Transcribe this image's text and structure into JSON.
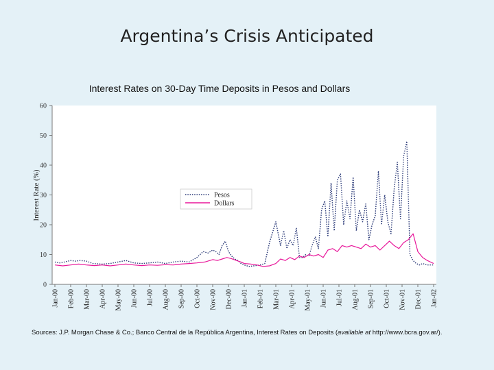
{
  "slide": {
    "title": "Argentina’s Crisis Anticipated",
    "sources_prefix": "Sources: J.P. Morgan Chase & Co.; Banco Central de la República Argentina, Interest Rates on Deposits (",
    "sources_italic": "available at",
    "sources_suffix": " http://www.bcra.gov.ar/)."
  },
  "colors": {
    "background": "#e4f1f7",
    "pesos": "#2b3a78",
    "dollars": "#e8179a"
  },
  "chart_data": {
    "type": "line",
    "title": "Interest Rates on 30-Day Time Deposits in Pesos and Dollars",
    "ylabel": "Interest Rate (%)",
    "xlabel": "",
    "ylim": [
      0,
      60
    ],
    "yticks": [
      0,
      10,
      20,
      30,
      40,
      50,
      60
    ],
    "x_ticks": [
      "Jan-00",
      "Feb-00",
      "Mar-00",
      "Apr-00",
      "May-00",
      "Jun-00",
      "Jul-00",
      "Aug-00",
      "Sep-00",
      "Oct-00",
      "Nov-00",
      "Dec-00",
      "Jan-01",
      "Feb-01",
      "Mar-01",
      "Apr-01",
      "May-01",
      "Jun-01",
      "Jul-01",
      "Aug-01",
      "Sep-01",
      "Oct-01",
      "Nov-01",
      "Dec-01",
      "Jan-02"
    ],
    "legend_position": "center-right",
    "grid": false,
    "series": [
      {
        "name": "Pesos",
        "style": "dotted",
        "x": [
          0,
          0.3,
          0.6,
          1,
          1.3,
          1.6,
          2,
          2.4,
          3,
          3.5,
          4,
          4.5,
          5,
          5.5,
          6,
          6.5,
          7,
          7.5,
          8,
          8.5,
          9,
          9.4,
          9.7,
          10,
          10.2,
          10.4,
          10.6,
          10.8,
          11,
          11.2,
          11.4,
          11.6,
          11.8,
          12,
          12.3,
          12.6,
          13,
          13.3,
          13.6,
          14,
          14.3,
          14.5,
          14.7,
          14.9,
          15.1,
          15.3,
          15.5,
          15.7,
          15.9,
          16.1,
          16.3,
          16.5,
          16.7,
          16.9,
          17.1,
          17.3,
          17.5,
          17.7,
          17.9,
          18.1,
          18.3,
          18.5,
          18.7,
          18.9,
          19.1,
          19.3,
          19.5,
          19.7,
          19.9,
          20.1,
          20.3,
          20.5,
          20.7,
          20.9,
          21.1,
          21.3,
          21.5,
          21.7,
          21.9,
          22.1,
          22.3,
          22.5,
          22.7,
          22.9,
          23.1,
          23.3,
          23.6,
          24
        ],
        "values": [
          7.5,
          7.2,
          7.5,
          8,
          7.8,
          8,
          7.8,
          7,
          6.8,
          7,
          7.5,
          8,
          7.2,
          7,
          7.2,
          7.5,
          7,
          7.5,
          7.8,
          7.5,
          9,
          11,
          10.5,
          11.5,
          11,
          10,
          13,
          14.5,
          11,
          9.5,
          8.5,
          8,
          7,
          6.5,
          6,
          6.2,
          6.5,
          7,
          14,
          21,
          13,
          18,
          12,
          15,
          13,
          19,
          9,
          9,
          10,
          9.5,
          13,
          16,
          12,
          25,
          28,
          16,
          34,
          18,
          35,
          37,
          20,
          28,
          22,
          36,
          18,
          25,
          21,
          27,
          15,
          20,
          23,
          38,
          20,
          30,
          21,
          17,
          32,
          41,
          22,
          43,
          48,
          10,
          8,
          7,
          6.5,
          7,
          6.5,
          6.5
        ]
      },
      {
        "name": "Dollars",
        "style": "solid",
        "x": [
          0,
          0.5,
          1,
          1.5,
          2,
          2.5,
          3,
          3.5,
          4,
          4.5,
          5,
          5.5,
          6,
          6.5,
          7,
          7.5,
          8,
          8.5,
          9,
          9.5,
          10,
          10.3,
          10.6,
          10.9,
          11.2,
          11.5,
          11.8,
          12,
          12.4,
          12.8,
          13.2,
          13.6,
          14,
          14.3,
          14.6,
          14.9,
          15.2,
          15.5,
          15.8,
          16.1,
          16.4,
          16.7,
          17,
          17.3,
          17.6,
          17.9,
          18.2,
          18.5,
          18.8,
          19.1,
          19.4,
          19.7,
          20,
          20.3,
          20.6,
          20.9,
          21.2,
          21.5,
          21.8,
          22.1,
          22.4,
          22.7,
          23,
          23.3,
          23.6,
          24
        ],
        "values": [
          6.5,
          6.2,
          6.5,
          6.8,
          6.5,
          6.3,
          6.5,
          6.2,
          6.5,
          6.8,
          6.5,
          6.3,
          6.5,
          6.4,
          6.6,
          6.5,
          6.8,
          7,
          7.2,
          7.5,
          8.3,
          8,
          8.5,
          9,
          8.6,
          8,
          7.5,
          7,
          6.8,
          6.5,
          6,
          6.2,
          7,
          8.5,
          8,
          9,
          8.3,
          9.5,
          9,
          10,
          9.5,
          10,
          9,
          11.5,
          12,
          11,
          13,
          12.5,
          13,
          12.5,
          12,
          13.5,
          12.5,
          13,
          11.5,
          13,
          14.5,
          13,
          12,
          14,
          15,
          17,
          11,
          9,
          8,
          7
        ]
      }
    ]
  }
}
